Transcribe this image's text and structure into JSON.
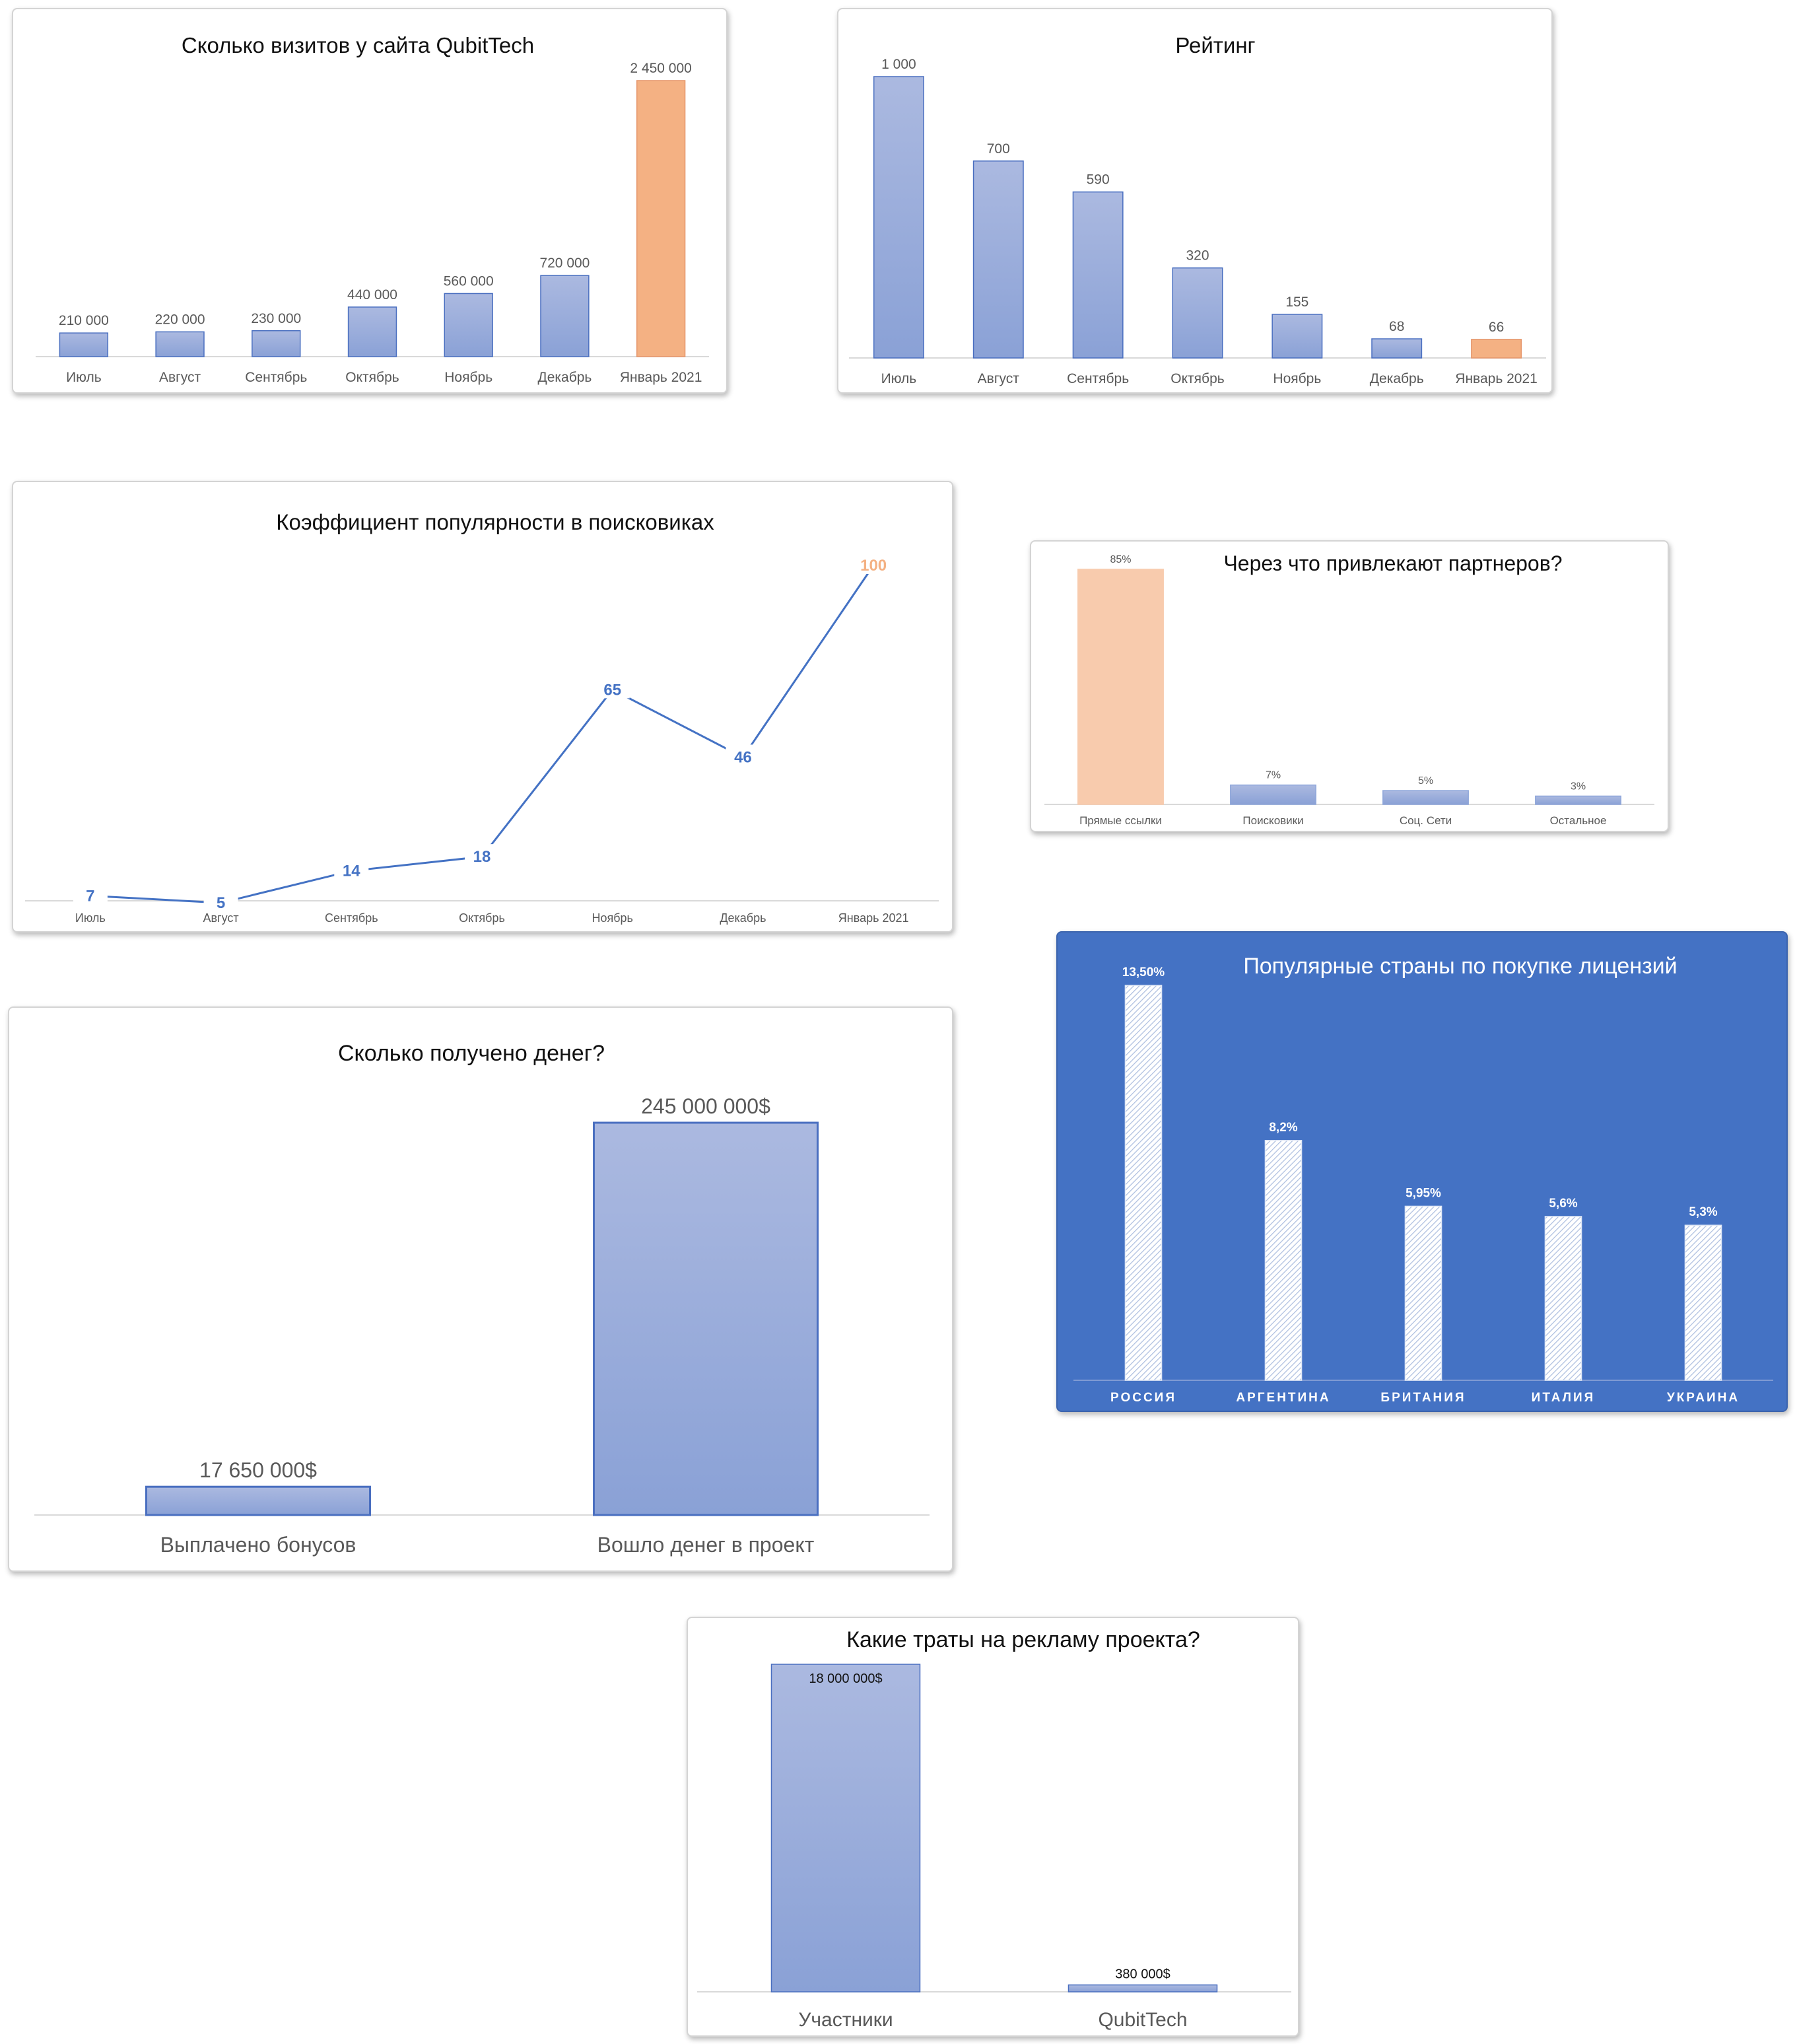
{
  "chart_data": [
    {
      "id": "visits",
      "type": "bar",
      "title": "Сколько визитов у сайта QubitTech",
      "categories": [
        "Июль",
        "Август",
        "Сентябрь",
        "Октябрь",
        "Ноябрь",
        "Декабрь",
        "Январь 2021"
      ],
      "values": [
        210000,
        220000,
        230000,
        440000,
        560000,
        720000,
        2450000
      ],
      "labels": [
        "210 000",
        "220 000",
        "230 000",
        "440 000",
        "560 000",
        "720 000",
        "2 450 000"
      ],
      "highlight_index": 6,
      "bar_color": "#8ea6da",
      "highlight_color": "#f4b183",
      "ylim": [
        0,
        2450000
      ]
    },
    {
      "id": "rating",
      "type": "bar",
      "title": "Рейтинг",
      "categories": [
        "Июль",
        "Август",
        "Сентябрь",
        "Октябрь",
        "Ноябрь",
        "Декабрь",
        "Январь 2021"
      ],
      "values": [
        1000,
        700,
        590,
        320,
        155,
        68,
        66
      ],
      "labels": [
        "1 000",
        "700",
        "590",
        "320",
        "155",
        "68",
        "66"
      ],
      "highlight_index": 6,
      "bar_color": "#8ea6da",
      "highlight_color": "#f4b183",
      "ylim": [
        0,
        1000
      ]
    },
    {
      "id": "search",
      "type": "line",
      "title": "Коэффициент популярности в поисковиках",
      "categories": [
        "Июль",
        "Август",
        "Сентябрь",
        "Октябрь",
        "Ноябрь",
        "Декабрь",
        "Январь 2021"
      ],
      "values": [
        7,
        5,
        14,
        18,
        65,
        46,
        100
      ],
      "labels": [
        "7",
        "5",
        "14",
        "18",
        "65",
        "46",
        "100"
      ],
      "highlight_index": 6,
      "line_color": "#4472c4",
      "highlight_color": "#f4b183",
      "ylim": [
        0,
        100
      ]
    },
    {
      "id": "partners",
      "type": "bar",
      "title": "Через что привлекают партнеров?",
      "categories": [
        "Прямые ссылки",
        "Поисковики",
        "Соц. Сети",
        "Остальное"
      ],
      "values": [
        85,
        7,
        5,
        3
      ],
      "labels": [
        "85%",
        "7%",
        "5%",
        "3%"
      ],
      "highlight_index": 0,
      "bar_color": "#8ea6da",
      "highlight_color": "#f8cbad",
      "ylim": [
        0,
        85
      ]
    },
    {
      "id": "countries",
      "type": "bar",
      "title": "Популярные страны по покупке лицензий",
      "categories": [
        "РОССИЯ",
        "АРГЕНТИНА",
        "БРИТАНИЯ",
        "ИТАЛИЯ",
        "УКРАИНА"
      ],
      "values": [
        13.5,
        8.2,
        5.95,
        5.6,
        5.3
      ],
      "labels": [
        "13,50%",
        "8,2%",
        "5,95%",
        "5,6%",
        "5,3%"
      ],
      "background": "#4472c4",
      "bar_color": "#e4ebf7",
      "ylim": [
        0,
        13.5
      ]
    },
    {
      "id": "money",
      "type": "bar",
      "title": "Сколько получено денег?",
      "categories": [
        "Выплачено бонусов",
        "Вошло денег в проект"
      ],
      "values": [
        17650000,
        245000000
      ],
      "labels": [
        "17 650 000$",
        "245 000 000$"
      ],
      "bar_color": "#8ea6da",
      "ylim": [
        0,
        245000000
      ]
    },
    {
      "id": "ads",
      "type": "bar",
      "title": "Какие траты на рекламу проекта?",
      "categories": [
        "Участники",
        "QubitTech"
      ],
      "values": [
        18000000,
        380000
      ],
      "labels": [
        "18 000 000$",
        "380 000$"
      ],
      "bar_color": "#8ea6da",
      "ylim": [
        0,
        18000000
      ]
    }
  ]
}
